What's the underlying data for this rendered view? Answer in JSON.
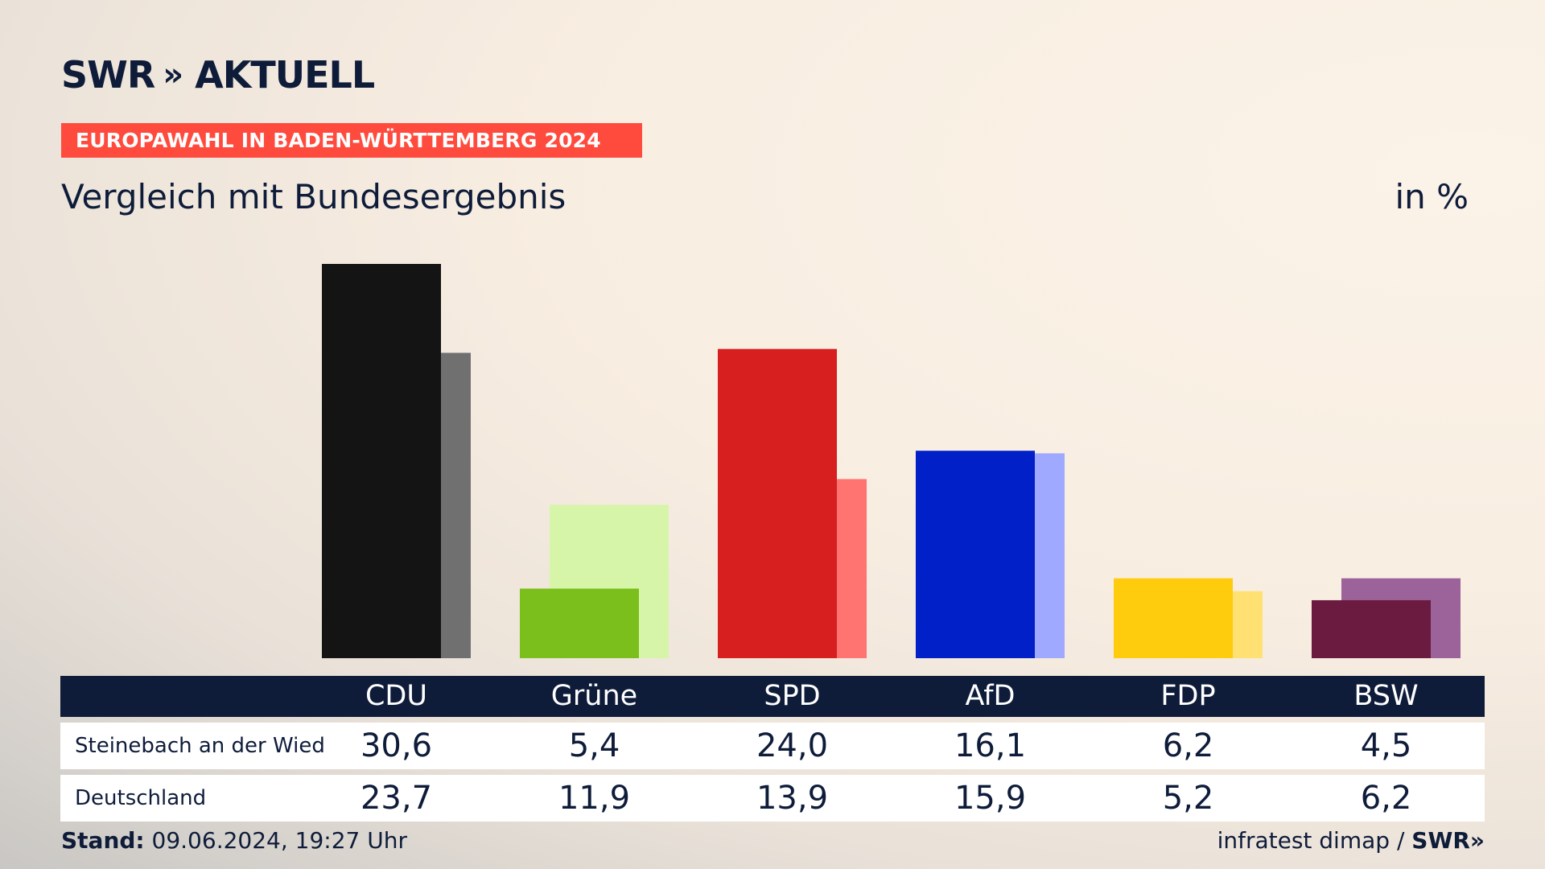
{
  "header": {
    "logo_main": "SWR",
    "logo_chevrons": "»",
    "logo_sub": "AKTUELL",
    "banner": "EUROPAWAHL IN BADEN-WÜRTTEMBERG 2024",
    "subtitle": "Vergleich mit Bundesergebnis",
    "unit": "in %"
  },
  "table": {
    "rows": [
      {
        "label": "Steinebach an der Wied",
        "values": [
          "30,6",
          "5,4",
          "24,0",
          "16,1",
          "6,2",
          "4,5"
        ]
      },
      {
        "label": "Deutschland",
        "values": [
          "23,7",
          "11,9",
          "13,9",
          "15,9",
          "5,2",
          "6,2"
        ]
      }
    ]
  },
  "footer": {
    "stand_label": "Stand:",
    "stand_value": "09.06.2024, 19:27 Uhr",
    "source": "infratest dimap /",
    "source_brand": "SWR»"
  },
  "chart_data": {
    "type": "bar",
    "categories": [
      "CDU",
      "Grüne",
      "SPD",
      "AfD",
      "FDP",
      "BSW"
    ],
    "series": [
      {
        "values": [
          30.6,
          5.4,
          24.0,
          16.1,
          6.2,
          4.5
        ],
        "colors": [
          "#141414",
          "#7abf1b",
          "#d71f1f",
          "#0120c8",
          "#ffcc0d",
          "#6b1a40"
        ]
      },
      {
        "values": [
          23.7,
          11.9,
          13.9,
          15.9,
          5.2,
          6.2
        ],
        "colors": [
          "#707070",
          "#d6f5a8",
          "#ff7370",
          "#9fa9ff",
          "#ffe173",
          "#9b6399"
        ]
      }
    ],
    "ylim": [
      0,
      30.6
    ]
  }
}
